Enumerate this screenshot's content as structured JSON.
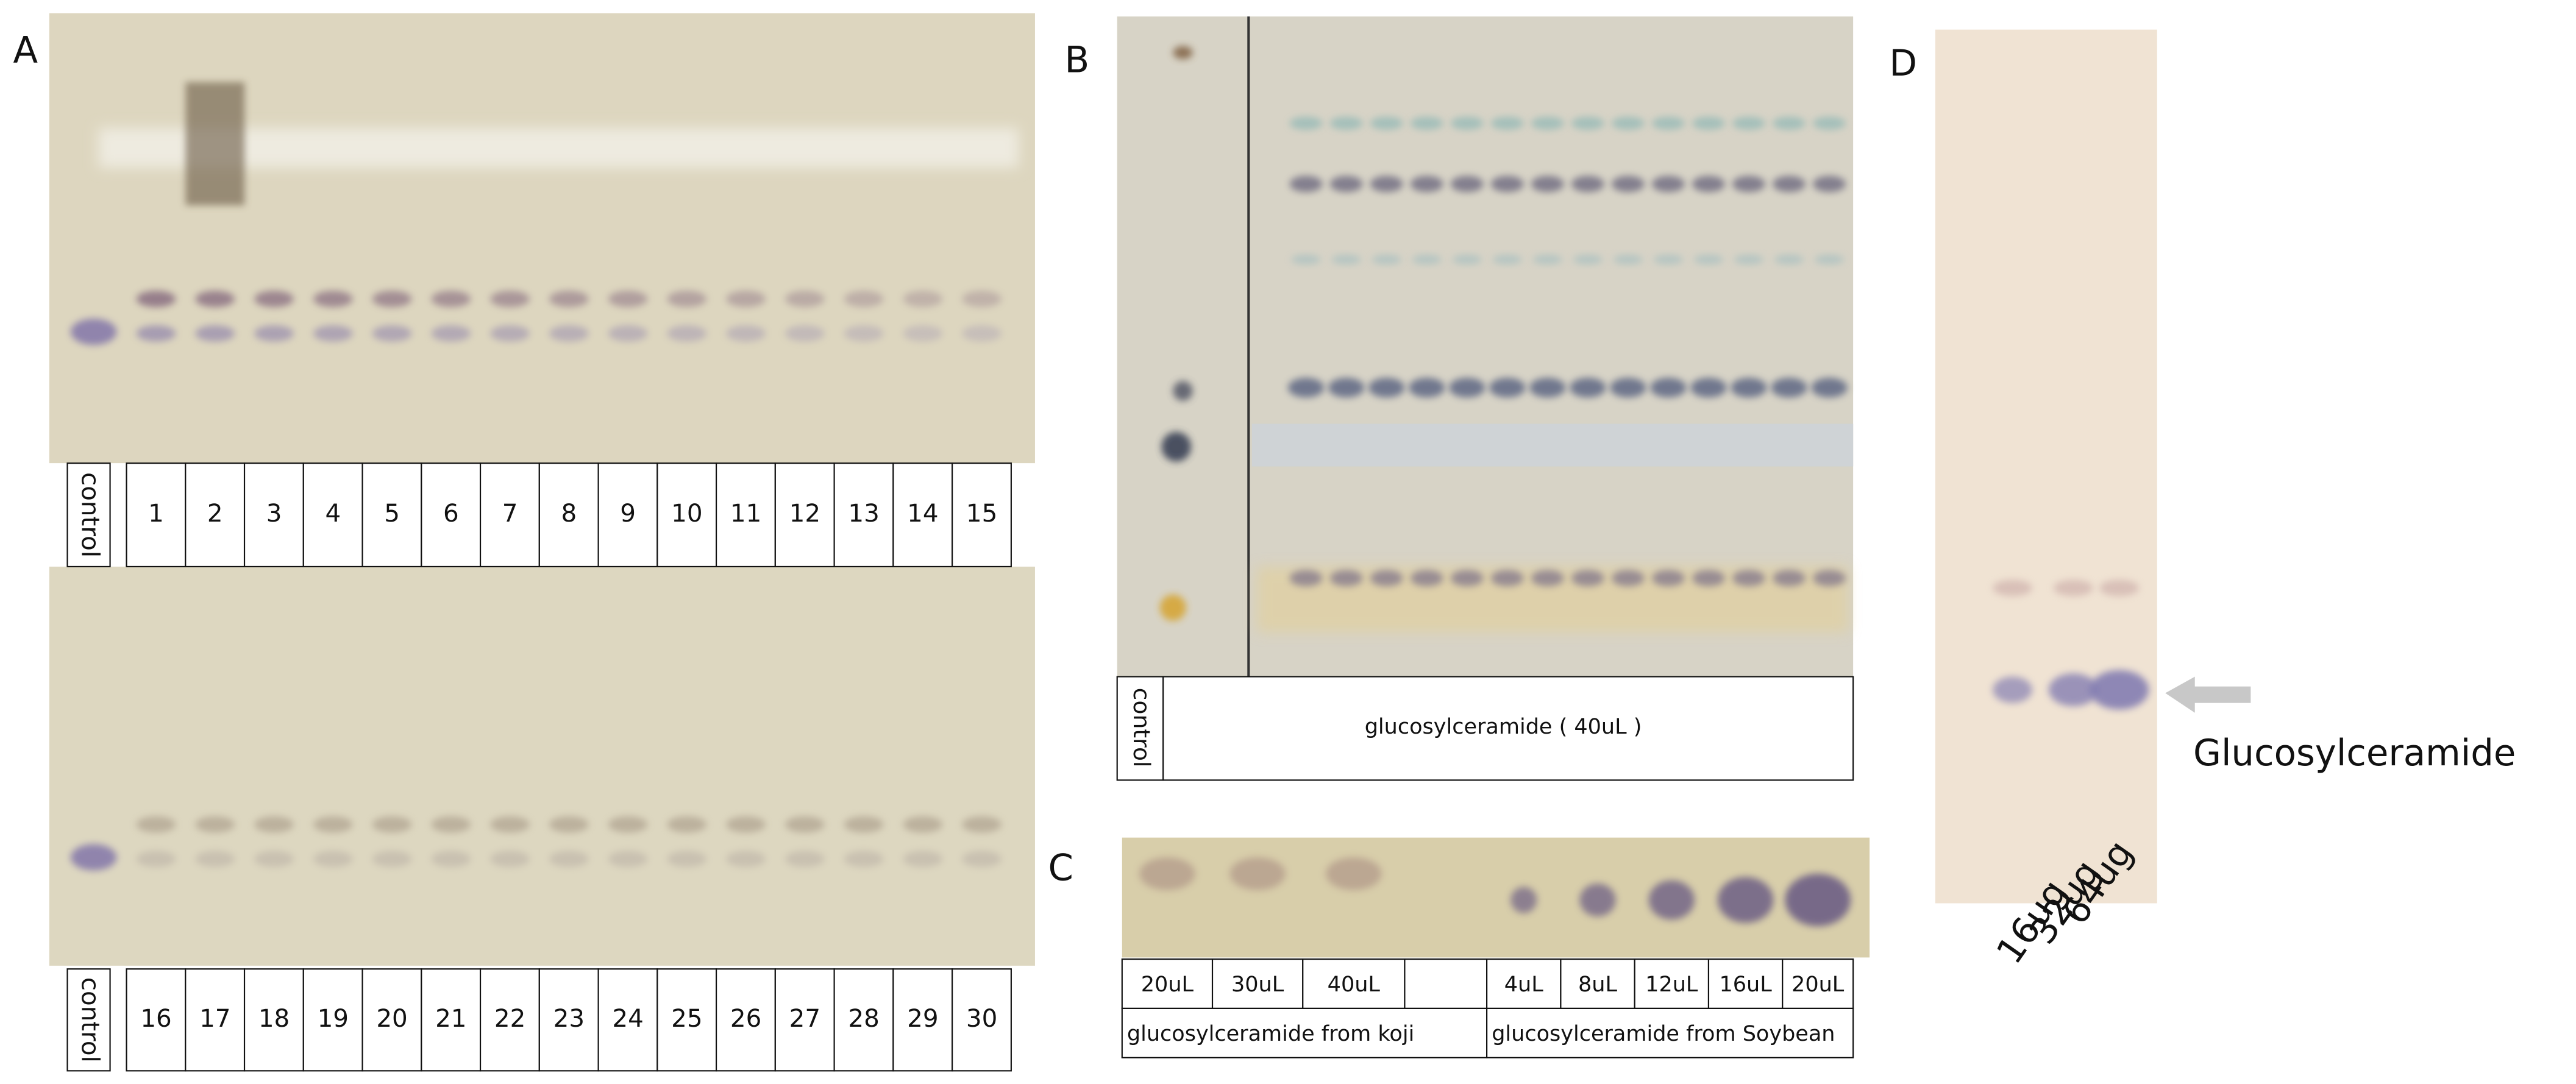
{
  "panels": {
    "a": {
      "label": "A",
      "top_lanes": [
        "control",
        "1",
        "2",
        "3",
        "4",
        "5",
        "6",
        "7",
        "8",
        "9",
        "10",
        "11",
        "12",
        "13",
        "14",
        "15"
      ],
      "bottom_lanes": [
        "control",
        "16",
        "17",
        "18",
        "19",
        "20",
        "21",
        "22",
        "23",
        "24",
        "25",
        "26",
        "27",
        "28",
        "29",
        "30"
      ]
    },
    "b": {
      "label": "B",
      "lanes": [
        "control",
        "glucosylceramide ( 40uL )"
      ]
    },
    "c": {
      "label": "C",
      "amounts": [
        "20uL",
        "30uL",
        "40uL",
        "4uL",
        "8uL",
        "12uL",
        "16uL",
        "20uL"
      ],
      "groups": [
        "glucosylceramide from koji",
        "glucosylceramide from Soybean"
      ]
    },
    "d": {
      "label": "D",
      "lanes": [
        "16ug",
        "32ug",
        "64ug"
      ],
      "annotation": "Glucosylceramide"
    }
  }
}
